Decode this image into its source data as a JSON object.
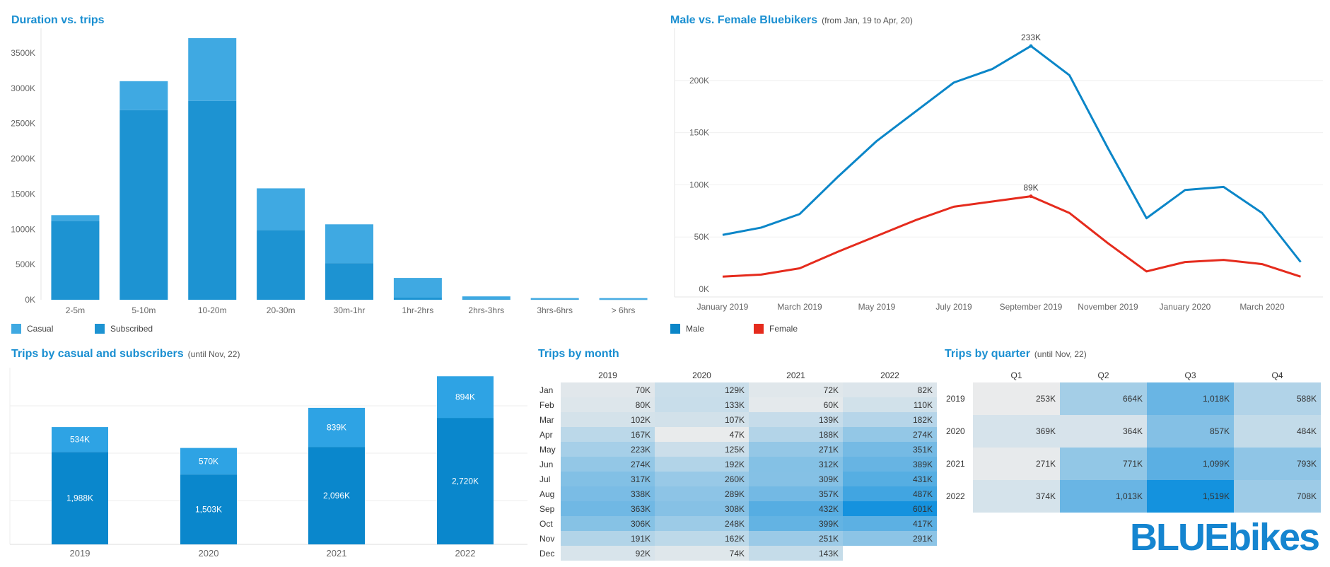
{
  "colors": {
    "casual": "#3fa9e2",
    "subscribed": "#1d93d2",
    "male": "#0b86c8",
    "female": "#e52b1d",
    "title": "#1a8fd1",
    "logo": "#1585d0",
    "logo_accent": "#f58220"
  },
  "panels": {
    "duration": {
      "title": "Duration vs. trips"
    },
    "gender": {
      "title": "Male vs. Female Bluebikers",
      "subtitle": "(from Jan, 19 to Apr, 20)"
    },
    "casual_sub": {
      "title": "Trips by casual and subscribers",
      "subtitle": "(until Nov, 22)"
    },
    "month": {
      "title": "Trips by month"
    },
    "quarter": {
      "title": "Trips by quarter",
      "subtitle": "(until Nov, 22)"
    }
  },
  "legends": {
    "duration": [
      {
        "label": "Casual",
        "color": "#3fa9e2"
      },
      {
        "label": "Subscribed",
        "color": "#1d93d2"
      }
    ],
    "gender": [
      {
        "label": "Male",
        "color": "#0b86c8"
      },
      {
        "label": "Female",
        "color": "#e52b1d"
      }
    ]
  },
  "logo": {
    "text_blue": "BLUE",
    "text_bikes": "bikes"
  },
  "chart_data": [
    {
      "type": "bar",
      "title": "Duration vs. trips",
      "stacked": true,
      "categories": [
        "2-5m",
        "5-10m",
        "10-20m",
        "20-30m",
        "30m-1hr",
        "1hr-2hrs",
        "2hrs-3hrs",
        "3hrs-6hrs",
        "> 6hrs"
      ],
      "series": [
        {
          "name": "Subscribed",
          "values": [
            1120,
            2690,
            2820,
            990,
            520,
            30,
            8,
            4,
            3
          ]
        },
        {
          "name": "Casual",
          "values": [
            80,
            410,
            890,
            590,
            550,
            280,
            40,
            20,
            20
          ]
        }
      ],
      "yticks": [
        "0K",
        "500K",
        "1000K",
        "1500K",
        "2000K",
        "2500K",
        "3000K",
        "3500K"
      ],
      "ylim": [
        0,
        3850
      ],
      "legend": "bottom-left"
    },
    {
      "type": "line",
      "title": "Male vs. Female Bluebikers",
      "x": [
        "2019-01",
        "2019-02",
        "2019-03",
        "2019-04",
        "2019-05",
        "2019-06",
        "2019-07",
        "2019-08",
        "2019-09",
        "2019-10",
        "2019-11",
        "2019-12",
        "2020-01",
        "2020-02",
        "2020-03",
        "2020-04"
      ],
      "xticks": [
        "January 2019",
        "March 2019",
        "May 2019",
        "July 2019",
        "September 2019",
        "November 2019",
        "January 2020",
        "March 2020"
      ],
      "series": [
        {
          "name": "Male",
          "values": [
            52,
            59,
            72,
            108,
            142,
            170,
            198,
            211,
            233,
            205,
            135,
            68,
            95,
            98,
            73,
            26
          ]
        },
        {
          "name": "Female",
          "values": [
            12,
            14,
            20,
            36,
            51,
            66,
            79,
            84,
            89,
            73,
            44,
            17,
            26,
            28,
            24,
            12
          ]
        }
      ],
      "annotations": [
        {
          "label": "233K",
          "x": "2019-09",
          "y": 233
        },
        {
          "label": "89K",
          "x": "2019-09",
          "y": 89
        }
      ],
      "yticks": [
        "0K",
        "50K",
        "100K",
        "150K",
        "200K"
      ],
      "ylim": [
        0,
        250
      ],
      "legend": "bottom-left"
    },
    {
      "type": "bar",
      "title": "Trips by casual and subscribers",
      "stacked": true,
      "categories": [
        "2019",
        "2020",
        "2021",
        "2022"
      ],
      "series": [
        {
          "values": [
            1988,
            1503,
            2096,
            2720
          ],
          "labels": [
            "1,988K",
            "1,503K",
            "2,096K",
            "2,720K"
          ]
        },
        {
          "values": [
            534,
            570,
            839,
            894
          ],
          "labels": [
            "534K",
            "570K",
            "839K",
            "894K"
          ]
        }
      ],
      "ylim": [
        0,
        3800
      ]
    },
    {
      "type": "heatmap",
      "title": "Trips by month",
      "columns": [
        "2019",
        "2020",
        "2021",
        "2022"
      ],
      "rows": [
        "Jan",
        "Feb",
        "Mar",
        "Apr",
        "May",
        "Jun",
        "Jul",
        "Aug",
        "Sep",
        "Oct",
        "Nov",
        "Dec"
      ],
      "values": [
        [
          70,
          129,
          72,
          82
        ],
        [
          80,
          133,
          60,
          110
        ],
        [
          102,
          107,
          139,
          182
        ],
        [
          167,
          47,
          188,
          274
        ],
        [
          223,
          125,
          271,
          351
        ],
        [
          274,
          192,
          312,
          389
        ],
        [
          317,
          260,
          309,
          431
        ],
        [
          338,
          289,
          357,
          487
        ],
        [
          363,
          308,
          432,
          601
        ],
        [
          306,
          248,
          399,
          417
        ],
        [
          191,
          162,
          251,
          291
        ],
        [
          92,
          74,
          143,
          null
        ]
      ],
      "labels": [
        [
          "70K",
          "129K",
          "72K",
          "82K"
        ],
        [
          "80K",
          "133K",
          "60K",
          "110K"
        ],
        [
          "102K",
          "107K",
          "139K",
          "182K"
        ],
        [
          "167K",
          "47K",
          "188K",
          "274K"
        ],
        [
          "223K",
          "125K",
          "271K",
          "351K"
        ],
        [
          "274K",
          "192K",
          "312K",
          "389K"
        ],
        [
          "317K",
          "260K",
          "309K",
          "431K"
        ],
        [
          "338K",
          "289K",
          "357K",
          "487K"
        ],
        [
          "363K",
          "308K",
          "432K",
          "601K"
        ],
        [
          "306K",
          "248K",
          "399K",
          "417K"
        ],
        [
          "191K",
          "162K",
          "251K",
          "291K"
        ],
        [
          "92K",
          "74K",
          "143K",
          ""
        ]
      ],
      "vmin": 40,
      "vmax": 610
    },
    {
      "type": "heatmap",
      "title": "Trips by quarter",
      "columns": [
        "Q1",
        "Q2",
        "Q3",
        "Q4"
      ],
      "rows": [
        "2019",
        "2020",
        "2021",
        "2022"
      ],
      "values": [
        [
          253,
          664,
          1018,
          588
        ],
        [
          369,
          364,
          857,
          484
        ],
        [
          271,
          771,
          1099,
          793
        ],
        [
          374,
          1013,
          1519,
          708
        ]
      ],
      "labels": [
        [
          "253K",
          "664K",
          "1,018K",
          "588K"
        ],
        [
          "369K",
          "364K",
          "857K",
          "484K"
        ],
        [
          "271K",
          "771K",
          "1,099K",
          "793K"
        ],
        [
          "374K",
          "1,013K",
          "1,519K",
          "708K"
        ]
      ],
      "vmin": 240,
      "vmax": 1530
    }
  ]
}
